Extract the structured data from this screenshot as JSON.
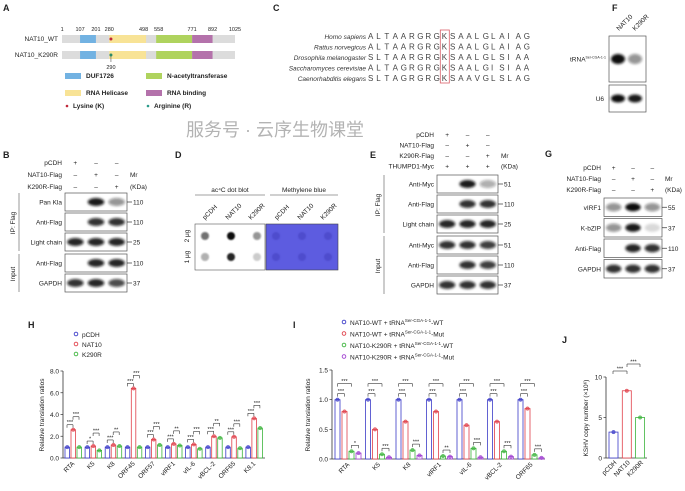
{
  "panels": {
    "A": {
      "label": "A",
      "positions": [
        "1",
        "107",
        "201",
        "280",
        "498",
        "558",
        "771",
        "892",
        "1025"
      ],
      "constructs": [
        {
          "name": "NAT10_WT",
          "site": 290,
          "marker_color": "#c0283a"
        },
        {
          "name": "NAT10_K290R",
          "site": 290,
          "site_label": "290",
          "marker_color": "#2a8a6a"
        }
      ],
      "domains": [
        {
          "name": "DUF1726",
          "start": 107,
          "end": 201,
          "color": "#72b2e2"
        },
        {
          "name": "RNA Helicase",
          "start": 280,
          "end": 498,
          "color": "#f8e396"
        },
        {
          "name": "N-acetyltransferase",
          "start": 558,
          "end": 771,
          "color": "#afd35e"
        },
        {
          "name": "RNA binding",
          "start": 771,
          "end": 892,
          "color": "#b472ab"
        }
      ],
      "markers": [
        {
          "name": "Lysine (K)",
          "color": "#c0283a"
        },
        {
          "name": "Arginine (R)",
          "color": "#2a9a8a"
        }
      ]
    },
    "C": {
      "label": "C",
      "highlight_index": 9,
      "highlight_color": "#d9606a",
      "species": [
        {
          "name": "Homo sapiens",
          "sequence": "ALTAARGRGKSAALGLAIAG"
        },
        {
          "name": "Rattus norvegicus",
          "sequence": "ALTAARGRGKSAALGLAIAG"
        },
        {
          "name": "Drosophila melanogaster",
          "sequence": "SLTAARGRGKSAALGLSIAA"
        },
        {
          "name": "Saccharomyces cerevisiae",
          "sequence": "ALTAGRGRGKSAALGISIAA"
        },
        {
          "name": "Caenorhabditis elegans",
          "sequence": "SLTAGRGRGKSAAVGLSLAG"
        }
      ]
    },
    "F": {
      "label": "F",
      "lanes": [
        "NAT10",
        "K290R"
      ],
      "probes": [
        {
          "name": "tRNA",
          "sup": "Ser-CGA-1-1",
          "bands": [
            1,
            0.45
          ]
        },
        {
          "name": "U6",
          "bands": [
            1,
            0.95
          ]
        }
      ]
    },
    "B": {
      "label": "B",
      "mr": "Mr",
      "kda": "(KDa)",
      "conditions": [
        {
          "name": "pCDH",
          "signs": [
            "+",
            "–",
            "–"
          ]
        },
        {
          "name": "NAT10-Flag",
          "signs": [
            "–",
            "+",
            "–"
          ]
        },
        {
          "name": "K290R-Flag",
          "signs": [
            "–",
            "–",
            "+"
          ]
        }
      ],
      "groups": [
        {
          "name": "IP: Flag",
          "blots": [
            {
              "name": "Pan Kla",
              "mw": "110",
              "bands": [
                0,
                0.95,
                0.45
              ]
            },
            {
              "name": "Anti-Flag",
              "mw": "110",
              "bands": [
                0,
                0.85,
                0.85
              ]
            },
            {
              "name": "Light chain",
              "mw": "25",
              "bands": [
                0.9,
                0.9,
                0.9
              ]
            }
          ]
        },
        {
          "name": "Input",
          "blots": [
            {
              "name": "Anti-Flag",
              "mw": "110",
              "bands": [
                0,
                0.9,
                0.9
              ]
            },
            {
              "name": "GAPDH",
              "mw": "37",
              "bands": [
                0.85,
                0.9,
                0.75
              ]
            }
          ]
        }
      ]
    },
    "D": {
      "label": "D",
      "headers": [
        "ac⁴C dot blot",
        "Methylene blue"
      ],
      "lanes": [
        "pCDH",
        "NAT10",
        "K290R"
      ],
      "rows": [
        "2 μg",
        "1 μg"
      ],
      "dot_blot": [
        [
          0.6,
          1,
          0.45
        ],
        [
          0.35,
          0.9,
          0.2
        ]
      ],
      "stain_color": "#5d5ce0"
    },
    "E": {
      "label": "E",
      "mr": "Mr",
      "kda": "(KDa)",
      "conditions": [
        {
          "name": "pCDH",
          "signs": [
            "+",
            "–",
            "–"
          ]
        },
        {
          "name": "NAT10-Flag",
          "signs": [
            "–",
            "+",
            "–"
          ]
        },
        {
          "name": "K290R-Flag",
          "signs": [
            "–",
            "–",
            "+"
          ]
        },
        {
          "name": "THUMPD1-Myc",
          "signs": [
            "+",
            "+",
            "+"
          ]
        }
      ],
      "groups": [
        {
          "name": "IP: Flag",
          "blots": [
            {
              "name": "Anti-Myc",
              "mw": "51",
              "bands": [
                0,
                0.95,
                0.35
              ]
            },
            {
              "name": "Anti-Flag",
              "mw": "110",
              "bands": [
                0,
                0.85,
                0.85
              ]
            },
            {
              "name": "Light chain",
              "mw": "25",
              "bands": [
                0.9,
                0.9,
                0.9
              ]
            }
          ]
        },
        {
          "name": "Input",
          "blots": [
            {
              "name": "Anti-Myc",
              "mw": "51",
              "bands": [
                0.85,
                0.85,
                0.8
              ]
            },
            {
              "name": "Anti-Flag",
              "mw": "110",
              "bands": [
                0,
                0.85,
                0.8
              ]
            },
            {
              "name": "GAPDH",
              "mw": "37",
              "bands": [
                0.85,
                0.85,
                0.85
              ]
            }
          ]
        }
      ]
    },
    "G": {
      "label": "G",
      "mr": "Mr",
      "kda": "(KDa)",
      "conditions": [
        {
          "name": "pCDH",
          "signs": [
            "+",
            "–",
            "–"
          ]
        },
        {
          "name": "NAT10-Flag",
          "signs": [
            "–",
            "+",
            "–"
          ]
        },
        {
          "name": "K290R-Flag",
          "signs": [
            "–",
            "–",
            "+"
          ]
        }
      ],
      "blots": [
        {
          "name": "vIRF1",
          "mw": "55",
          "bands": [
            0.45,
            1,
            0.45
          ]
        },
        {
          "name": "K-bZIP",
          "mw": "37",
          "bands": [
            0.45,
            0.95,
            0.15
          ]
        },
        {
          "name": "Anti-Flag",
          "mw": "110",
          "bands": [
            0,
            0.9,
            0.85
          ]
        },
        {
          "name": "GAPDH",
          "mw": "37",
          "bands": [
            0.85,
            0.85,
            0.85
          ]
        }
      ]
    }
  },
  "chart_data": [
    {
      "panel": "H",
      "type": "bar",
      "ylabel": "Relative translation ratios",
      "ylim": [
        0,
        8
      ],
      "y_ticks": [
        "0.0",
        "2.0",
        "4.0",
        "6.0",
        "8.0"
      ],
      "categories": [
        "RTA",
        "K5",
        "K8",
        "ORF45",
        "ORF57",
        "vIRF1",
        "vIL-6",
        "vBCL-2",
        "ORF65",
        "K8.1"
      ],
      "series": [
        {
          "name": "pCDH",
          "color": "#3b3bc8",
          "values": [
            1,
            1,
            1,
            1,
            1,
            1,
            1,
            1,
            1,
            1
          ]
        },
        {
          "name": "NAT10",
          "color": "#e0404a",
          "values": [
            2.6,
            1.1,
            1.2,
            6.4,
            1.7,
            1.3,
            1.25,
            2.0,
            1.95,
            3.65
          ]
        },
        {
          "name": "K290R",
          "color": "#3cb43c",
          "values": [
            1.0,
            0.7,
            1.1,
            1.0,
            1.2,
            1.15,
            0.85,
            1.85,
            0.9,
            2.75
          ]
        }
      ],
      "significance": [
        [
          "***",
          "***"
        ],
        [
          "*",
          "***"
        ],
        [
          "***",
          "**"
        ],
        [
          "***",
          "***"
        ],
        [
          "***",
          "***"
        ],
        [
          "***",
          "**"
        ],
        [
          "***",
          "***"
        ],
        [
          "***",
          "**"
        ],
        [
          "***",
          "***"
        ],
        [
          "***",
          "***"
        ]
      ]
    },
    {
      "panel": "I",
      "type": "bar",
      "ylabel": "Relative translation ratios",
      "ylim": [
        0,
        1.5
      ],
      "y_ticks": [
        "0.0",
        "0.5",
        "1.0",
        "1.5"
      ],
      "categories": [
        "RTA",
        "K5",
        "K8",
        "vIRF1",
        "vIL-6",
        "vBCL-2",
        "ORF65"
      ],
      "series": [
        {
          "name": "NAT10-WT + tRNA",
          "sup": "Ser-CGA-1-1",
          "suffix": "-WT",
          "color": "#3b3bc8",
          "values": [
            1.0,
            1.0,
            1.0,
            1.0,
            1.0,
            1.0,
            1.0
          ]
        },
        {
          "name": "NAT10-WT + tRNA",
          "sup": "Ser-CGA-1-1",
          "suffix": "-Mut",
          "color": "#e0404a",
          "values": [
            0.8,
            0.5,
            0.63,
            0.8,
            0.57,
            0.63,
            0.85
          ]
        },
        {
          "name": "NAT10-K290R + tRNA",
          "sup": "Ser-CGA-1-1",
          "suffix": "-WT",
          "color": "#3cb43c",
          "values": [
            0.13,
            0.08,
            0.15,
            0.05,
            0.18,
            0.13,
            0.07
          ]
        },
        {
          "name": "NAT10-K290R + tRNA",
          "sup": "Ser-CGA-1-1",
          "suffix": "-Mut",
          "color": "#a040d0",
          "values": [
            0.1,
            0.03,
            0.06,
            0.04,
            0.03,
            0.04,
            0.02
          ]
        }
      ],
      "significance": [
        [
          "***",
          "***",
          "*"
        ],
        [
          "***",
          "***",
          "***"
        ],
        [
          "***",
          "***",
          "***"
        ],
        [
          "***",
          "***",
          "**"
        ],
        [
          "***",
          "***",
          "***"
        ],
        [
          "***",
          "***",
          "***"
        ],
        [
          "***",
          "***",
          "***"
        ]
      ]
    },
    {
      "panel": "J",
      "type": "bar",
      "ylabel": "KSHV copy number (×10⁶)",
      "ylim": [
        0,
        10
      ],
      "y_ticks": [
        "0",
        "5",
        "10"
      ],
      "categories": [
        "pCDH",
        "NAT10",
        "K290R"
      ],
      "colors": [
        "#3b3bc8",
        "#e0404a",
        "#3cb43c"
      ],
      "values": [
        3.2,
        8.3,
        5.0
      ],
      "significance": [
        "***",
        "***"
      ]
    }
  ],
  "watermark": "服务号 · 云序生物课堂"
}
